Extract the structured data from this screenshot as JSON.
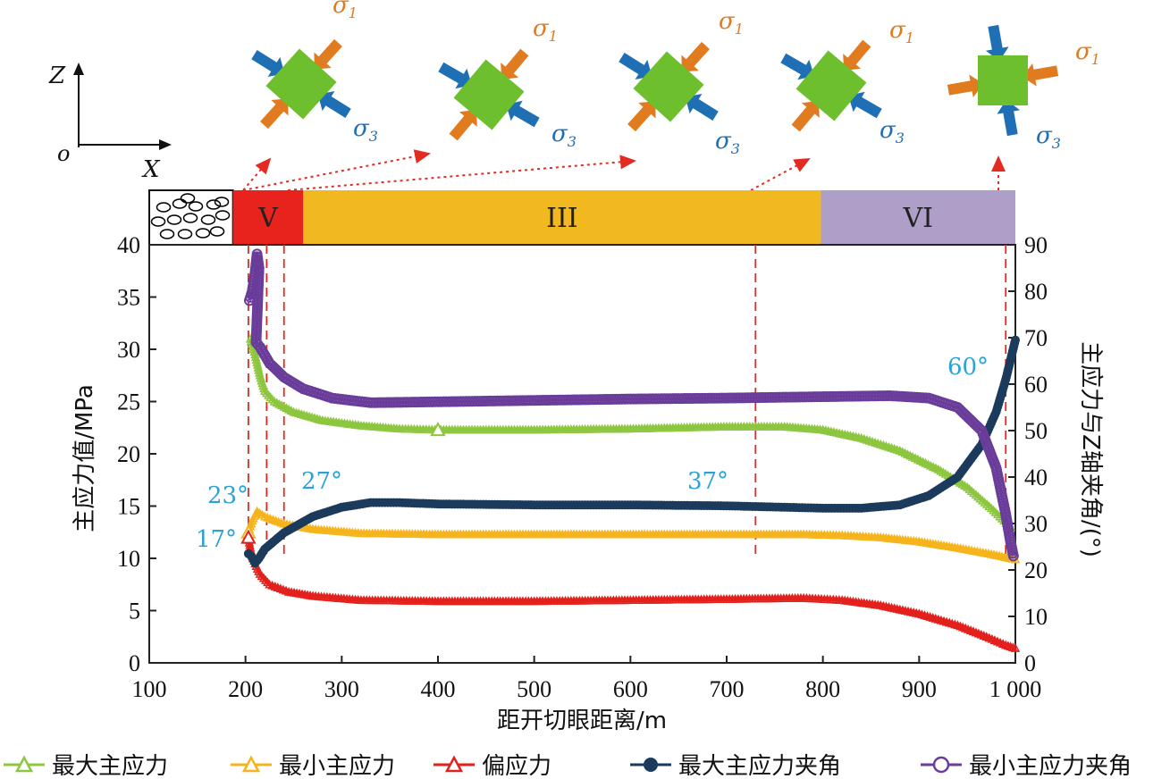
{
  "chart_data": {
    "type": "line",
    "xlabel": "距开切眼距离/m",
    "ylabel_left": "主应力值/MPa",
    "ylabel_right": "主应力与Z轴夹角/(°)",
    "xlim": [
      100,
      1000
    ],
    "ylim_left": [
      0,
      40
    ],
    "ylim_right": [
      0,
      90
    ],
    "x_ticks": [
      "100",
      "200",
      "300",
      "400",
      "500",
      "600",
      "700",
      "800",
      "900",
      "1 000"
    ],
    "y_ticks_left": [
      "0",
      "5",
      "10",
      "15",
      "20",
      "25",
      "30",
      "35",
      "40"
    ],
    "y_ticks_right": [
      "0",
      "10",
      "20",
      "30",
      "40",
      "50",
      "60",
      "70",
      "80",
      "90"
    ],
    "legend_placement": "bottom",
    "series": [
      {
        "name": "最大主应力",
        "axis": "left",
        "color": "#8dc63f",
        "marker": "triangle-open",
        "points": [
          [
            205,
            31
          ],
          [
            210,
            29.5
          ],
          [
            215,
            27.5
          ],
          [
            220,
            26
          ],
          [
            230,
            25
          ],
          [
            250,
            24
          ],
          [
            280,
            23.2
          ],
          [
            320,
            22.7
          ],
          [
            360,
            22.4
          ],
          [
            400,
            22.3
          ],
          [
            500,
            22.3
          ],
          [
            600,
            22.4
          ],
          [
            700,
            22.6
          ],
          [
            760,
            22.6
          ],
          [
            800,
            22.3
          ],
          [
            840,
            21.5
          ],
          [
            880,
            20.3
          ],
          [
            920,
            18.5
          ],
          [
            950,
            16.8
          ],
          [
            975,
            14.8
          ],
          [
            995,
            13
          ]
        ]
      },
      {
        "name": "最小主应力",
        "axis": "left",
        "color": "#f5b41b",
        "marker": "triangle-open",
        "points": [
          [
            203,
            12.5
          ],
          [
            207,
            13.6
          ],
          [
            212,
            14.5
          ],
          [
            220,
            14
          ],
          [
            240,
            13.3
          ],
          [
            270,
            12.8
          ],
          [
            320,
            12.4
          ],
          [
            400,
            12.3
          ],
          [
            500,
            12.3
          ],
          [
            600,
            12.3
          ],
          [
            700,
            12.3
          ],
          [
            780,
            12.3
          ],
          [
            820,
            12.2
          ],
          [
            860,
            12
          ],
          [
            900,
            11.6
          ],
          [
            940,
            11
          ],
          [
            975,
            10.4
          ],
          [
            1000,
            9.9
          ]
        ]
      },
      {
        "name": "偏应力",
        "axis": "left",
        "color": "#e3211c",
        "marker": "triangle-open",
        "points": [
          [
            203,
            12
          ],
          [
            206,
            10.5
          ],
          [
            210,
            9.5
          ],
          [
            215,
            8.5
          ],
          [
            225,
            7.5
          ],
          [
            245,
            6.8
          ],
          [
            270,
            6.4
          ],
          [
            320,
            6
          ],
          [
            400,
            5.9
          ],
          [
            500,
            5.9
          ],
          [
            600,
            6
          ],
          [
            700,
            6.1
          ],
          [
            780,
            6.2
          ],
          [
            820,
            6
          ],
          [
            860,
            5.5
          ],
          [
            900,
            4.7
          ],
          [
            940,
            3.6
          ],
          [
            970,
            2.5
          ],
          [
            990,
            1.7
          ],
          [
            1000,
            1.4
          ]
        ]
      },
      {
        "name": "最大主应力夹角",
        "axis": "right",
        "color": "#1b3a5c",
        "marker": "circle-filled",
        "points": [
          [
            203,
            23.5
          ],
          [
            206,
            23
          ],
          [
            210,
            21.5
          ],
          [
            214,
            22.5
          ],
          [
            220,
            24.5
          ],
          [
            240,
            28
          ],
          [
            270,
            31.5
          ],
          [
            300,
            33.5
          ],
          [
            330,
            34.5
          ],
          [
            360,
            34.5
          ],
          [
            400,
            34.2
          ],
          [
            500,
            34
          ],
          [
            600,
            34
          ],
          [
            700,
            33.8
          ],
          [
            760,
            33.5
          ],
          [
            800,
            33.3
          ],
          [
            840,
            33.3
          ],
          [
            880,
            34
          ],
          [
            910,
            36
          ],
          [
            940,
            40
          ],
          [
            965,
            47
          ],
          [
            980,
            54
          ],
          [
            990,
            61
          ],
          [
            1000,
            69.5
          ]
        ]
      },
      {
        "name": "最小主应力夹角",
        "axis": "right",
        "color": "#6a3d9a",
        "marker": "circle-open",
        "points": [
          [
            204,
            78
          ],
          [
            207,
            80
          ],
          [
            210,
            84
          ],
          [
            212,
            88
          ],
          [
            214,
            85
          ],
          [
            211,
            69
          ],
          [
            215,
            68
          ],
          [
            225,
            64.5
          ],
          [
            240,
            61.5
          ],
          [
            260,
            59
          ],
          [
            290,
            57
          ],
          [
            330,
            56
          ],
          [
            400,
            56.2
          ],
          [
            500,
            56.5
          ],
          [
            600,
            56.8
          ],
          [
            700,
            57
          ],
          [
            800,
            57.3
          ],
          [
            870,
            57.5
          ],
          [
            910,
            57
          ],
          [
            940,
            55
          ],
          [
            965,
            50
          ],
          [
            980,
            42
          ],
          [
            990,
            32
          ],
          [
            995,
            26
          ],
          [
            998,
            23
          ]
        ]
      }
    ],
    "annotations": {
      "angle_labels": [
        {
          "text": "23°",
          "x": 203,
          "y_right": 35
        },
        {
          "text": "17°",
          "x": 203,
          "y_right": 23
        },
        {
          "text": "27°",
          "x": 240,
          "y_right": 38
        },
        {
          "text": "37°",
          "x": 730,
          "y_right": 38
        },
        {
          "text": "60°",
          "x": 1000,
          "y_right": 70
        }
      ],
      "zones": [
        {
          "label": "V",
          "from": 187,
          "to": 260,
          "color": "#e8221c"
        },
        {
          "label": "III",
          "from": 260,
          "to": 798,
          "color": "#f2b81f"
        },
        {
          "label": "VI",
          "from": 798,
          "to": 1000,
          "color": "#ad9fc7"
        }
      ],
      "zone_hatch_color": "#000000",
      "dashed_lines_x": [
        203,
        222,
        240,
        730,
        990
      ],
      "stress_element": {
        "sigma1": "σ1",
        "sigma3": "σ3",
        "square_color": "#6dbf2e",
        "sigma1_color": "#e07b1f",
        "sigma3_color": "#1f6fb5"
      },
      "axis_triad": {
        "z": "Z",
        "x": "X",
        "origin": "o"
      }
    }
  }
}
